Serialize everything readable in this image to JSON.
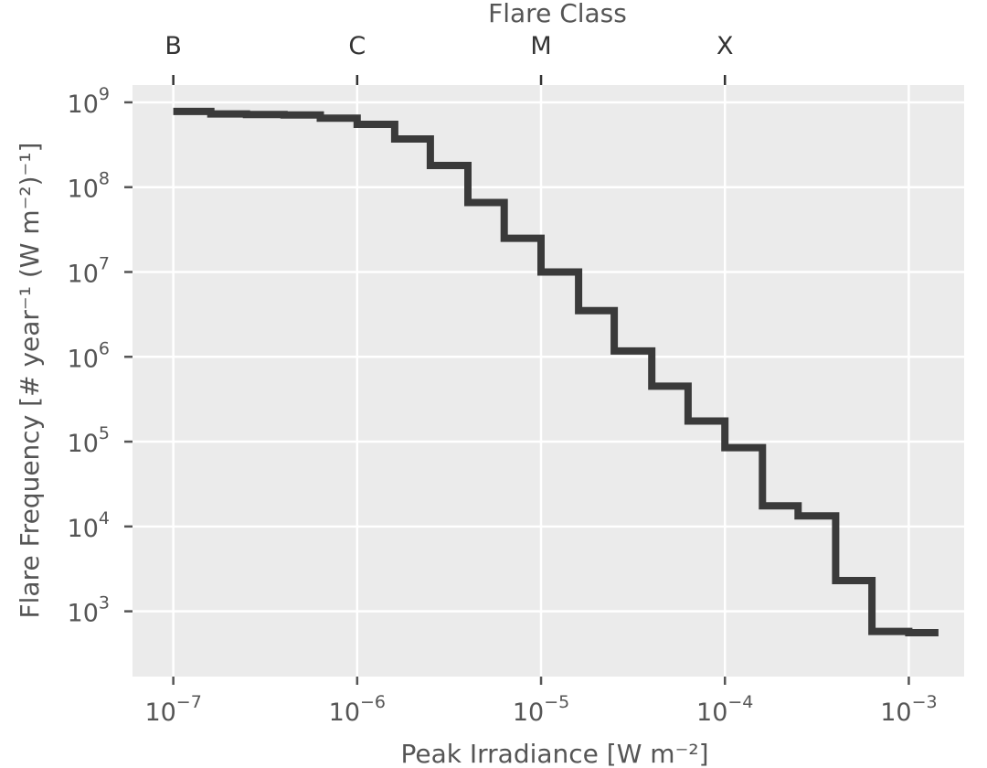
{
  "chart_data": {
    "type": "line",
    "drawstyle": "steps",
    "xscale": "log",
    "yscale": "log",
    "xlim": [
      6e-08,
      0.002
    ],
    "ylim": [
      170,
      1600000000.0
    ],
    "xlabel": "Peak Irradiance [W m⁻²]",
    "ylabel": "Flare Frequency [# year⁻¹ (W m⁻²)⁻¹]",
    "top_axis_title": "Flare Class",
    "grid": true,
    "x_ticks": [
      {
        "value": 1e-07,
        "base": "10",
        "exp": "−7"
      },
      {
        "value": 1e-06,
        "base": "10",
        "exp": "−6"
      },
      {
        "value": 1e-05,
        "base": "10",
        "exp": "−5"
      },
      {
        "value": 0.0001,
        "base": "10",
        "exp": "−4"
      },
      {
        "value": 0.001,
        "base": "10",
        "exp": "−3"
      }
    ],
    "y_ticks": [
      {
        "value": 1000000000.0,
        "base": "10",
        "exp": "9"
      },
      {
        "value": 100000000.0,
        "base": "10",
        "exp": "8"
      },
      {
        "value": 10000000.0,
        "base": "10",
        "exp": "7"
      },
      {
        "value": 1000000.0,
        "base": "10",
        "exp": "6"
      },
      {
        "value": 100000.0,
        "base": "10",
        "exp": "5"
      },
      {
        "value": 10000.0,
        "base": "10",
        "exp": "4"
      },
      {
        "value": 1000.0,
        "base": "10",
        "exp": "3"
      }
    ],
    "flare_classes": [
      {
        "label": "B",
        "value": 1e-07
      },
      {
        "label": "C",
        "value": 1e-06
      },
      {
        "label": "M",
        "value": 1e-05
      },
      {
        "label": "X",
        "value": 0.0001
      }
    ],
    "series": [
      {
        "x": [
          1e-07,
          1.6e-07,
          2.5e-07,
          4e-07,
          6.3e-07,
          1e-06,
          1.6e-06,
          2.5e-06,
          4e-06,
          6.3e-06,
          1e-05,
          1.6e-05,
          2.5e-05,
          4e-05,
          6.3e-05,
          0.0001,
          0.00016,
          0.00025,
          0.0004,
          0.00063,
          0.001,
          0.00145
        ],
        "y": [
          780000000.0,
          730000000.0,
          720000000.0,
          710000000.0,
          650000000.0,
          550000000.0,
          370000000.0,
          180000000.0,
          66000000.0,
          25000000.0,
          10000000.0,
          3500000.0,
          1170000.0,
          450000.0,
          175000.0,
          85000.0,
          17500.0,
          13300.0,
          2300.0,
          580,
          560,
          560
        ]
      }
    ],
    "line_color": "#3a3a3a",
    "background_color": "#ebebeb",
    "grid_color": "#ffffff"
  }
}
